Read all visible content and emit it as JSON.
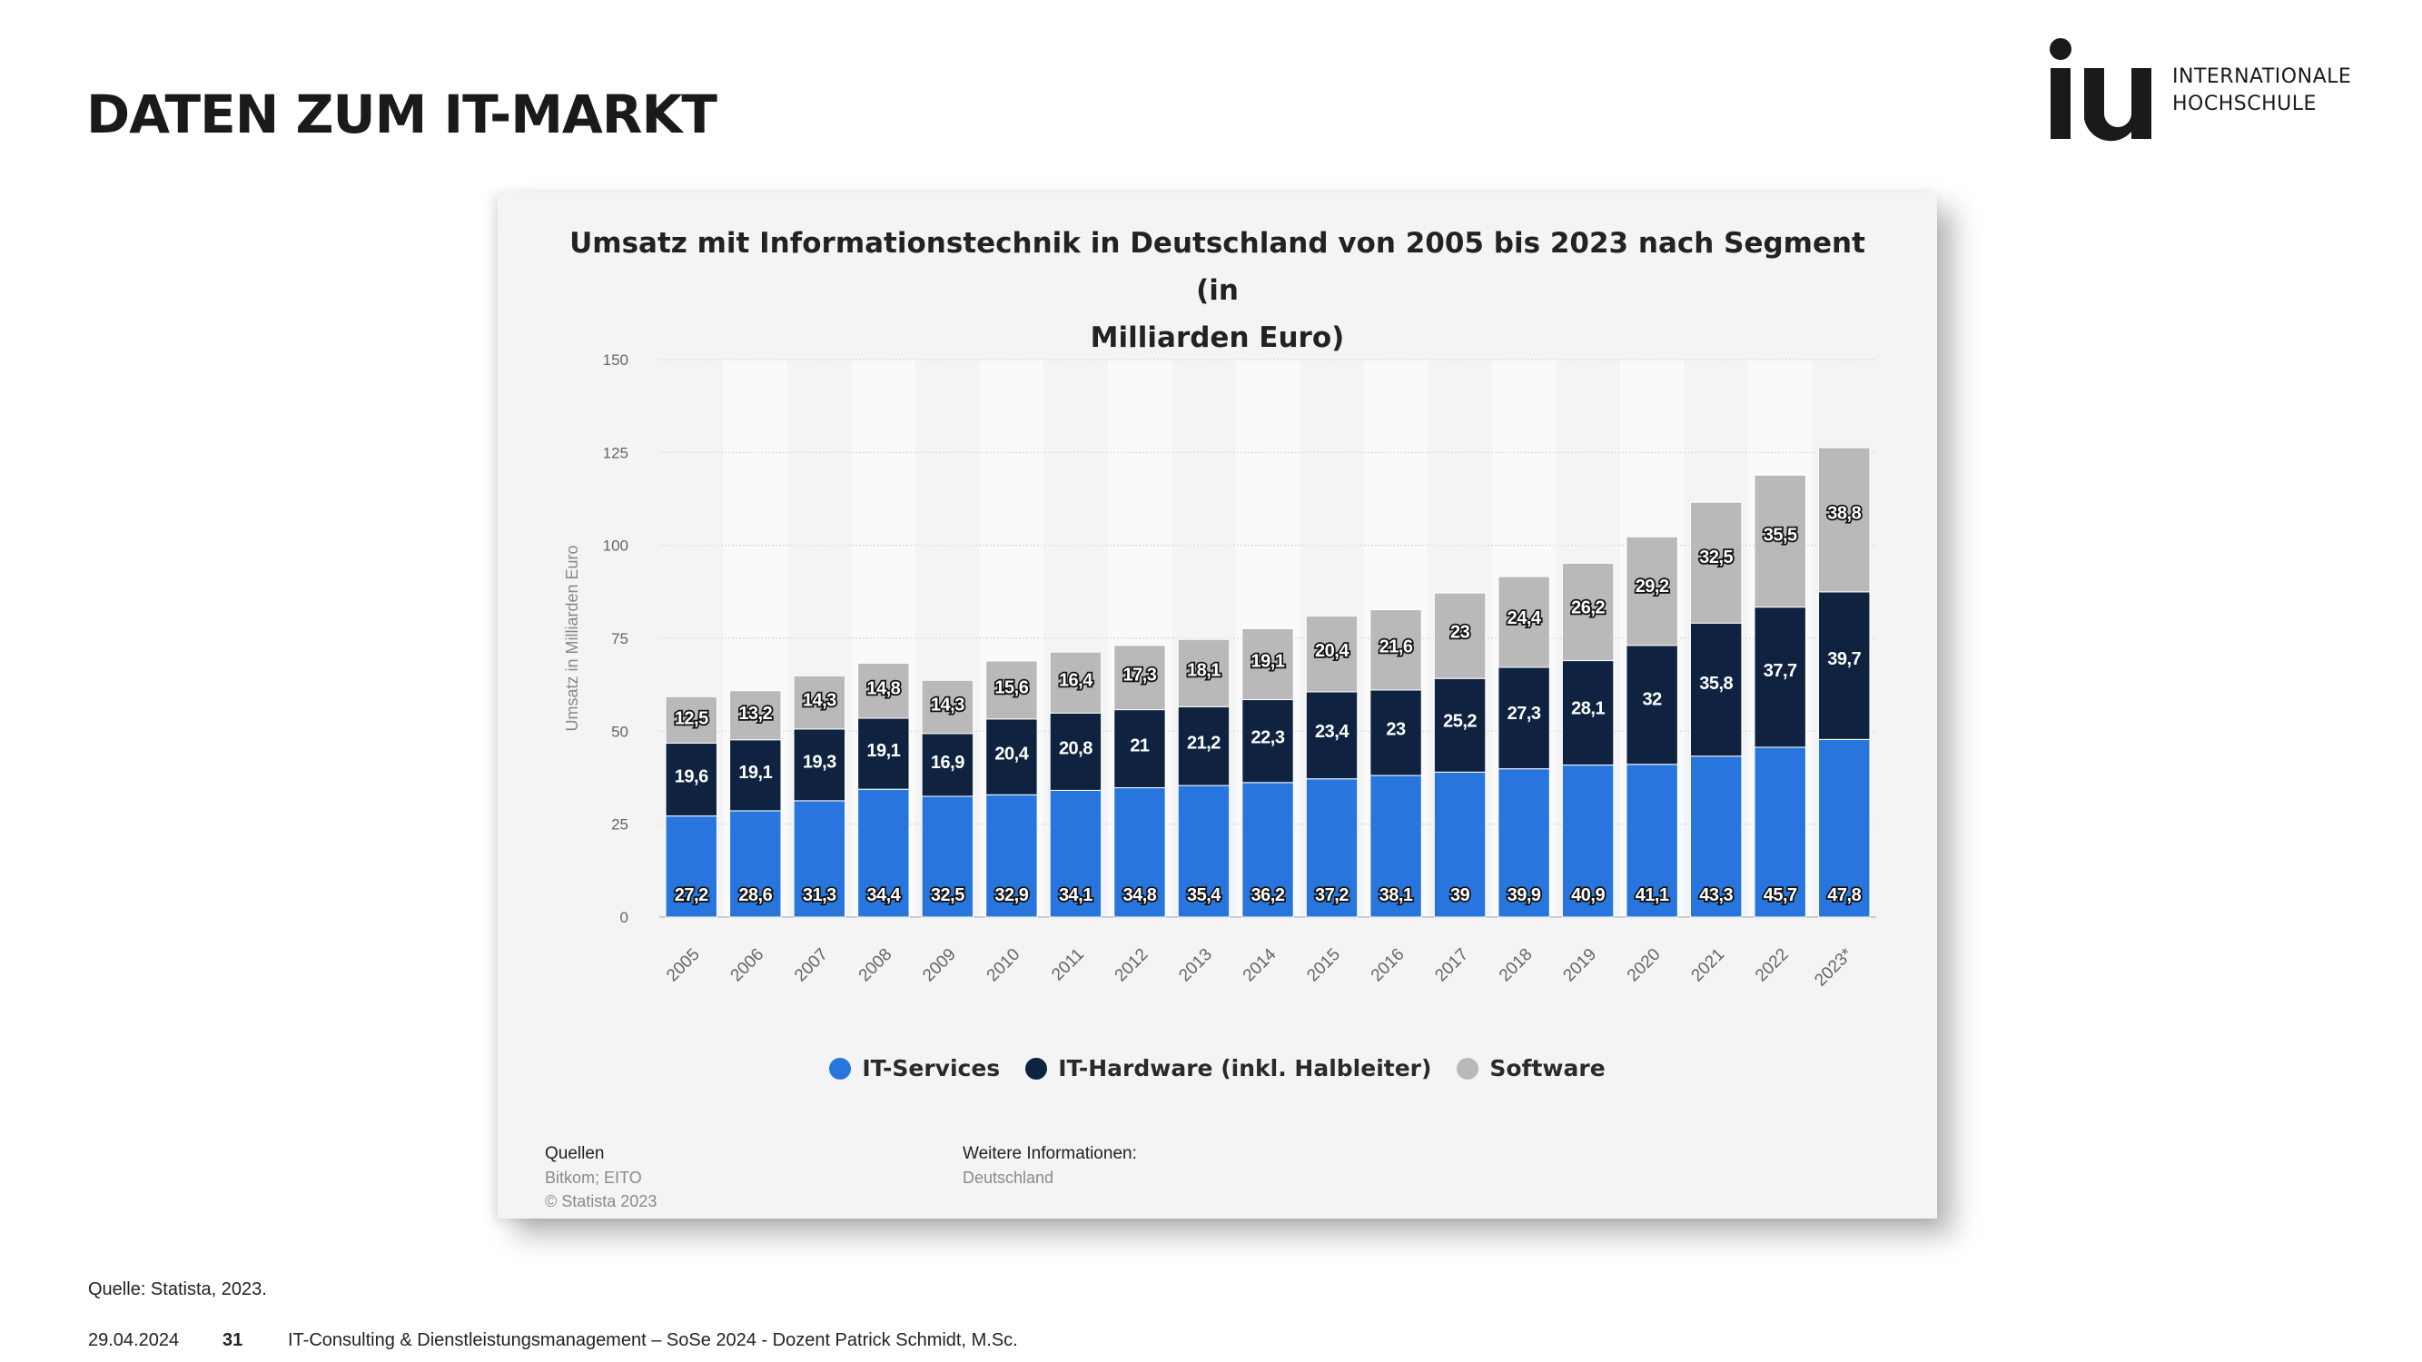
{
  "slide": {
    "title": "DATEN ZUM IT-MARKT",
    "logo": {
      "mark": "iu",
      "line1": "INTERNATIONALE",
      "line2": "HOCHSCHULE"
    },
    "footnote": "Quelle: Statista, 2023.",
    "footer": {
      "date": "29.04.2024",
      "page": "31",
      "course": "IT-Consulting & Dienstleistungsmanagement – SoSe 2024 - Dozent Patrick Schmidt, M.Sc."
    }
  },
  "sources": {
    "heading": "Quellen",
    "lines": [
      "Bitkom; EITO",
      "© Statista 2023"
    ],
    "info_heading": "Weitere Informationen:",
    "info_line": "Deutschland"
  },
  "chart_data": {
    "type": "bar",
    "stacked": true,
    "title": "Umsatz mit Informationstechnik in Deutschland von 2005 bis 2023 nach Segment (in Milliarden Euro)",
    "title_lines": [
      "Umsatz mit Informationstechnik in Deutschland von 2005 bis 2023 nach Segment (in",
      "Milliarden Euro)"
    ],
    "xlabel": "",
    "ylabel": "Umsatz in Milliarden Euro",
    "ylim": [
      0,
      150
    ],
    "yticks": [
      0,
      25,
      50,
      75,
      100,
      125,
      150
    ],
    "grid": true,
    "legend_position": "bottom",
    "categories": [
      "2005",
      "2006",
      "2007",
      "2008",
      "2009",
      "2010",
      "2011",
      "2012",
      "2013",
      "2014",
      "2015",
      "2016",
      "2017",
      "2018",
      "2019",
      "2020",
      "2021",
      "2022",
      "2023*"
    ],
    "series": [
      {
        "name": "IT-Services",
        "color": "#2876dd",
        "values": [
          27.2,
          28.6,
          31.3,
          34.4,
          32.5,
          32.9,
          34.1,
          34.8,
          35.4,
          36.2,
          37.2,
          38.1,
          39,
          39.9,
          40.9,
          41.1,
          43.3,
          45.7,
          47.8
        ],
        "labels": [
          "27,2",
          "28,6",
          "31,3",
          "34,4",
          "32,5",
          "32,9",
          "34,1",
          "34,8",
          "35,4",
          "36,2",
          "37,2",
          "38,1",
          "39",
          "39,9",
          "40,9",
          "41,1",
          "43,3",
          "45,7",
          "47,8"
        ]
      },
      {
        "name": "IT-Hardware (inkl. Halbleiter)",
        "color": "#0f2340",
        "values": [
          19.6,
          19.1,
          19.3,
          19.1,
          16.9,
          20.4,
          20.8,
          21,
          21.2,
          22.3,
          23.4,
          23,
          25.2,
          27.3,
          28.1,
          32,
          35.8,
          37.7,
          39.7
        ],
        "labels": [
          "19,6",
          "19,1",
          "19,3",
          "19,1",
          "16,9",
          "20,4",
          "20,8",
          "21",
          "21,2",
          "22,3",
          "23,4",
          "23",
          "25,2",
          "27,3",
          "28,1",
          "32",
          "35,8",
          "37,7",
          "39,7"
        ]
      },
      {
        "name": "Software",
        "color": "#b9b9b9",
        "values": [
          12.5,
          13.2,
          14.3,
          14.8,
          14.3,
          15.6,
          16.4,
          17.3,
          18.1,
          19.1,
          20.4,
          21.6,
          23,
          24.4,
          26.2,
          29.2,
          32.5,
          35.5,
          38.8
        ],
        "labels": [
          "12,5",
          "13,2",
          "14,3",
          "14,8",
          "14,3",
          "15,6",
          "16,4",
          "17,3",
          "18,1",
          "19,1",
          "20,4",
          "21,6",
          "23",
          "24,4",
          "26,2",
          "29,2",
          "32,5",
          "35,5",
          "38,8"
        ]
      }
    ]
  }
}
